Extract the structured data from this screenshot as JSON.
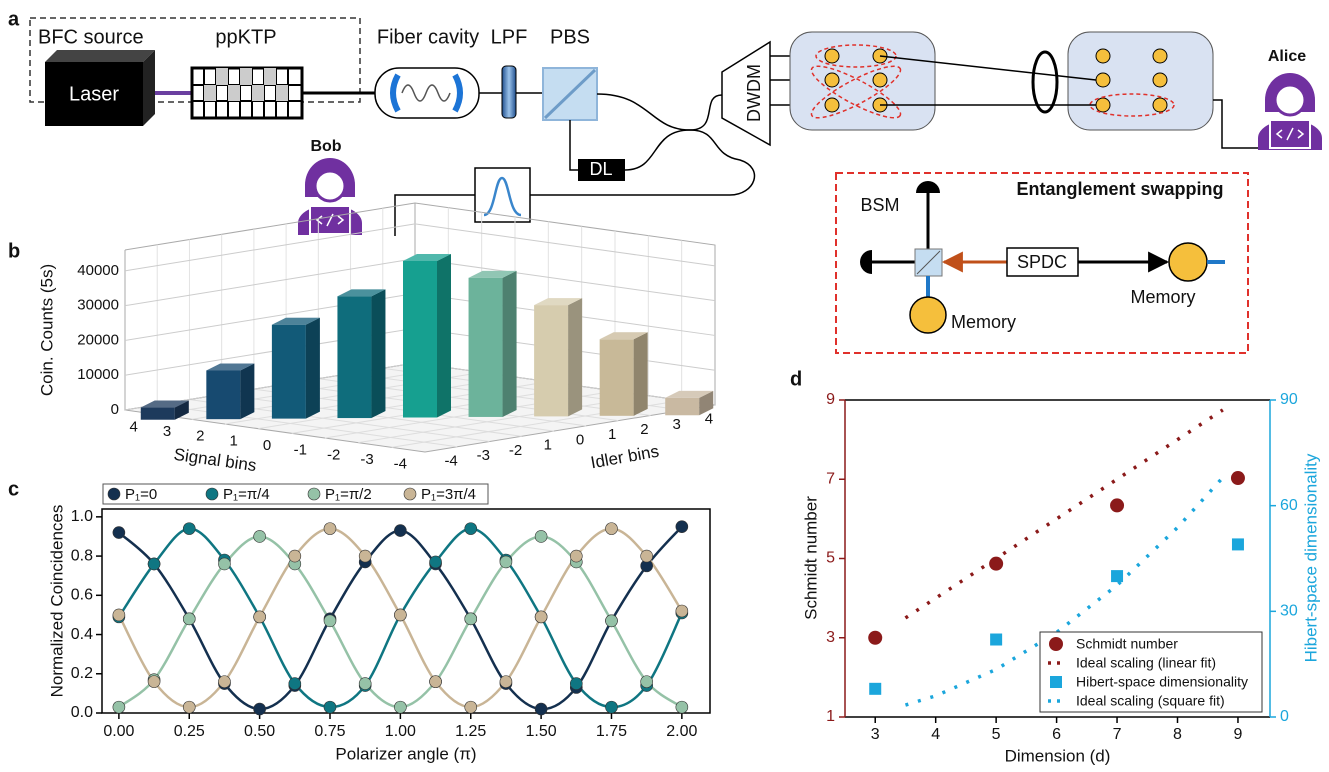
{
  "diagram": {
    "panel_label": "a",
    "source_label": "BFC source",
    "laser": "Laser",
    "crystal": "ppKTP",
    "cavity": "Fiber cavity",
    "filter": "LPF",
    "splitter": "PBS",
    "delay": "DL",
    "demux": "DWDM",
    "bob": "Bob",
    "alice": "Alice",
    "inset": {
      "title": "Entanglement swapping",
      "measurement": "BSM",
      "source": "SPDC",
      "memory_right": "Memory",
      "memory_bottom": "Memory"
    }
  },
  "chart_data": [
    {
      "type": "bar3d",
      "panel_label": "b",
      "y_label": "Coin. Counts (5s)",
      "x_label": "Signal bins",
      "z_label": "Idler bins",
      "categories": [
        "4",
        "3",
        "2",
        "1",
        "0",
        "-1",
        "-2",
        "-3",
        "-4"
      ],
      "idler_categories": [
        "-4",
        "-3",
        "-2",
        "1",
        "0",
        "1",
        "2",
        "3",
        "4"
      ],
      "values": [
        3500,
        14000,
        27000,
        35000,
        45000,
        40000,
        32000,
        22000,
        5000
      ],
      "colors": [
        "#1d3a5c",
        "#174a70",
        "#125a78",
        "#0f6d7c",
        "#16a090",
        "#6cb39b",
        "#d6ccae",
        "#c8b998",
        "#c9b9a2"
      ],
      "ylim": [
        0,
        46000
      ],
      "yticks": [
        0,
        10000,
        20000,
        30000,
        40000
      ],
      "grid": true
    },
    {
      "type": "line",
      "panel_label": "c",
      "x_label": "Polarizer angle (π)",
      "y_label": "Normalized Coincidences",
      "x": [
        0,
        0.125,
        0.25,
        0.375,
        0.5,
        0.625,
        0.75,
        0.875,
        1,
        1.125,
        1.25,
        1.375,
        1.5,
        1.625,
        1.75,
        1.875,
        2
      ],
      "series": [
        {
          "name": "P₁=0",
          "color": "#14304f",
          "values": [
            0.92,
            0.76,
            0.48,
            0.15,
            0.02,
            0.14,
            0.48,
            0.77,
            0.93,
            0.76,
            0.48,
            0.15,
            0.02,
            0.13,
            0.47,
            0.75,
            0.95
          ]
        },
        {
          "name": "P₁=π/4",
          "color": "#0f7682",
          "values": [
            0.49,
            0.76,
            0.94,
            0.78,
            0.49,
            0.15,
            0.03,
            0.14,
            0.5,
            0.77,
            0.94,
            0.78,
            0.49,
            0.15,
            0.03,
            0.14,
            0.51
          ]
        },
        {
          "name": "P₁=π/2",
          "color": "#95c2a7",
          "values": [
            0.03,
            0.17,
            0.48,
            0.76,
            0.9,
            0.76,
            0.47,
            0.15,
            0.03,
            0.16,
            0.48,
            0.77,
            0.9,
            0.77,
            0.47,
            0.16,
            0.03
          ]
        },
        {
          "name": "P₁=3π/4",
          "color": "#c9b596",
          "values": [
            0.5,
            0.16,
            0.03,
            0.16,
            0.49,
            0.8,
            0.94,
            0.8,
            0.5,
            0.16,
            0.03,
            0.16,
            0.49,
            0.8,
            0.94,
            0.8,
            0.52
          ]
        }
      ],
      "xlim": [
        -0.06,
        2.1
      ],
      "xticks": [
        {
          "value": 0,
          "label": "0.00"
        },
        {
          "value": 0.25,
          "label": "0.25"
        },
        {
          "value": 0.5,
          "label": "0.50"
        },
        {
          "value": 0.75,
          "label": "0.75"
        },
        {
          "value": 1,
          "label": "1.00"
        },
        {
          "value": 1.25,
          "label": "1.25"
        },
        {
          "value": 1.5,
          "label": "1.50"
        },
        {
          "value": 1.75,
          "label": "1.75"
        },
        {
          "value": 2,
          "label": "2.00"
        }
      ],
      "ylim": [
        0,
        1.04
      ],
      "yticks": [
        {
          "value": 0,
          "label": "0.0"
        },
        {
          "value": 0.2,
          "label": "0.2"
        },
        {
          "value": 0.4,
          "label": "0.4"
        },
        {
          "value": 0.6,
          "label": "0.6"
        },
        {
          "value": 0.8,
          "label": "0.8"
        },
        {
          "value": 1,
          "label": "1.0"
        }
      ],
      "legend": "top"
    },
    {
      "type": "scatter",
      "panel_label": "d",
      "x_label": "Dimension (d)",
      "y_label": "Schmidt number",
      "y2_label": "Hibert-space dimensionality",
      "xlim": [
        2.5,
        9.53
      ],
      "xticks": [
        3,
        4,
        5,
        6,
        7,
        8,
        9
      ],
      "ylim": [
        1,
        9
      ],
      "yticks": [
        1,
        3,
        5,
        7,
        9
      ],
      "y2lim": [
        0,
        90
      ],
      "y2ticks": [
        0,
        30,
        60,
        90
      ],
      "y_color": "#8b1a1a",
      "y2_color": "#1ba6dc",
      "series": [
        {
          "name": "Schmidt number",
          "color": "#8b1a1a",
          "marker": "circle",
          "x": [
            3,
            5,
            7,
            9
          ],
          "values": [
            3,
            4.87,
            6.34,
            7.03
          ]
        },
        {
          "name": "Ideal scaling (linear fit)",
          "color": "#8b1a1a",
          "marker": "dotted-line",
          "x": [
            3.5,
            8.75
          ],
          "values": [
            3.5,
            8.75
          ]
        },
        {
          "name": "Hibert-space dimensionality",
          "color": "#1ba6dc",
          "marker": "square",
          "axis": "y2",
          "x": [
            3,
            5,
            7,
            9
          ],
          "values": [
            8,
            22,
            40,
            49
          ]
        },
        {
          "name": "Ideal scaling (square fit)",
          "color": "#1ba6dc",
          "marker": "dotted-line",
          "axis": "y2",
          "x": [
            3.5,
            4,
            5,
            6,
            7,
            8,
            8.75
          ],
          "values": [
            3.4,
            6,
            13.5,
            24,
            37.4,
            53.8,
            68
          ]
        }
      ],
      "legend": "lower right"
    }
  ]
}
